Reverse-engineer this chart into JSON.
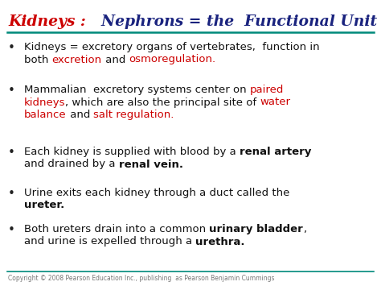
{
  "bg_color": "#ffffff",
  "title_red": "Kidneys : ",
  "title_blue": "  Nephrons = the  Functional Unit",
  "title_red_color": "#cc0000",
  "title_blue_color": "#1a237e",
  "separator_color": "#00897b",
  "copyright_text": "Copyright © 2008 Pearson Education Inc., publishing  as Pearson Benjamin Cummings",
  "copyright_color": "#777777",
  "bullet_color": "#222222",
  "text_black": "#111111",
  "text_red": "#cc0000",
  "title_fontsize": 13.5,
  "body_fontsize": 9.5,
  "copy_fontsize": 5.5
}
